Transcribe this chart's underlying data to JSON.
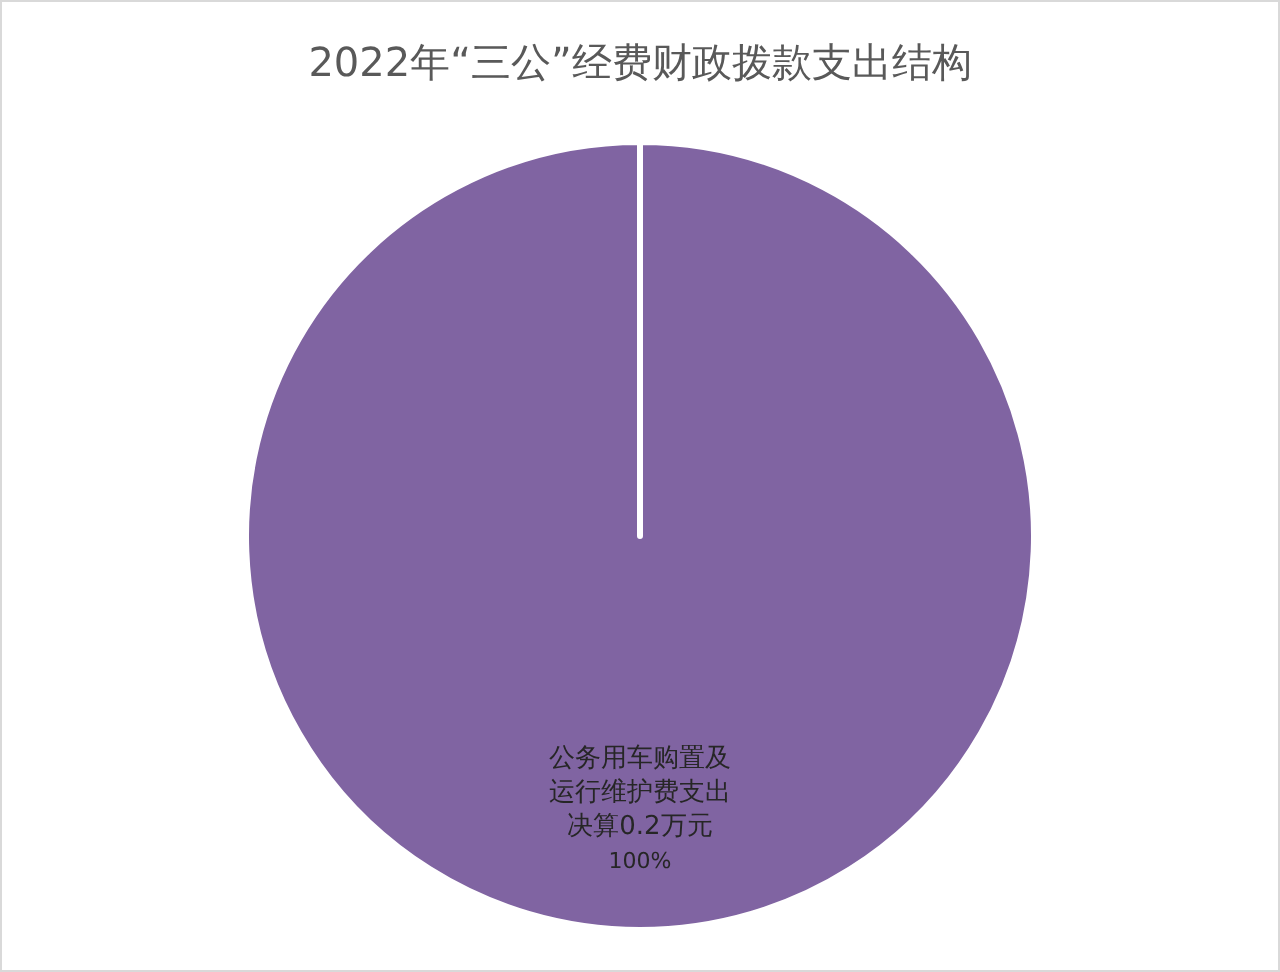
{
  "chart_data": {
    "type": "pie",
    "title": "2022年“三公”经费财政拨款支出结构",
    "categories": [
      "公务用车购置及运行维护费支出决算0.2万元"
    ],
    "values": [
      100
    ],
    "colors": [
      "#8064a2"
    ],
    "value_labels": [
      "100%"
    ]
  }
}
